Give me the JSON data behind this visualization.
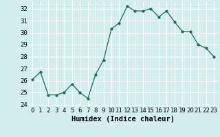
{
  "x": [
    0,
    1,
    2,
    3,
    4,
    5,
    6,
    7,
    8,
    9,
    10,
    11,
    12,
    13,
    14,
    15,
    16,
    17,
    18,
    19,
    20,
    21,
    22,
    23
  ],
  "y": [
    26.1,
    26.7,
    24.8,
    24.8,
    25.0,
    25.7,
    25.0,
    24.5,
    26.5,
    27.7,
    30.3,
    30.8,
    32.2,
    31.8,
    31.8,
    32.0,
    31.3,
    31.8,
    30.9,
    30.1,
    30.1,
    29.0,
    28.7,
    28.0
  ],
  "line_color": "#1a6b5a",
  "bg_color": "#d4eded",
  "grid_color": "#ffffff",
  "xlabel": "Humidex (Indice chaleur)",
  "xlabel_fontsize": 7.5,
  "tick_fontsize": 6.5,
  "ylim": [
    23.8,
    32.6
  ],
  "yticks": [
    24,
    25,
    26,
    27,
    28,
    29,
    30,
    31,
    32
  ],
  "xticks": [
    0,
    1,
    2,
    3,
    4,
    5,
    6,
    7,
    8,
    9,
    10,
    11,
    12,
    13,
    14,
    15,
    16,
    17,
    18,
    19,
    20,
    21,
    22,
    23
  ],
  "figwidth": 3.2,
  "figheight": 2.0,
  "dpi": 100
}
